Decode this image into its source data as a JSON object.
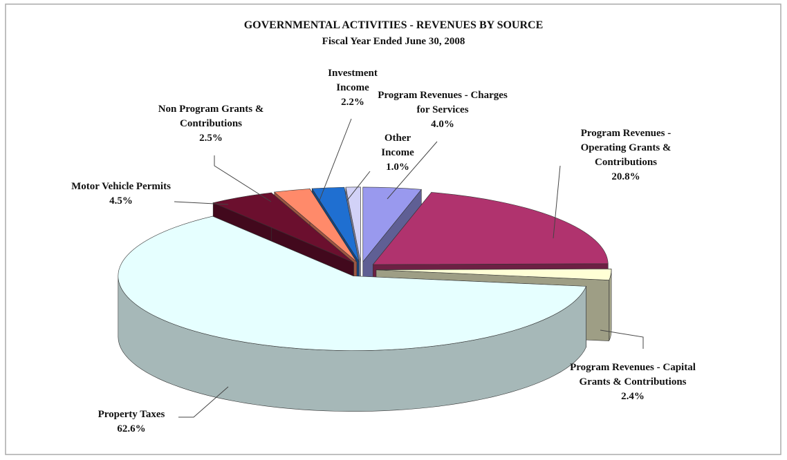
{
  "chart_data": {
    "type": "pie3d",
    "title": "GOVERNMENTAL ACTIVITIES - REVENUES BY SOURCE",
    "subtitle": "Fiscal Year Ended June 30, 2008",
    "categories": [
      "Program Revenues - Charges for Services",
      "Program Revenues - Operating Grants & Contributions",
      "Program Revenues - Capital Grants & Contributions",
      "Property Taxes",
      "Motor Vehicle Permits",
      "Non Program Grants & Contributions",
      "Investment Income",
      "Other Income"
    ],
    "values": [
      4.0,
      20.8,
      2.4,
      62.6,
      4.5,
      2.5,
      2.2,
      1.0
    ],
    "value_labels": [
      "4.0%",
      "20.8%",
      "2.4%",
      "62.6%",
      "4.5%",
      "2.5%",
      "2.2%",
      "1.0%"
    ],
    "colors": [
      "#9999ee",
      "#b0336e",
      "#ffffd6",
      "#e6ffff",
      "#6b0f2e",
      "#ff8a6a",
      "#1f6fd1",
      "#d2d2f7"
    ]
  }
}
